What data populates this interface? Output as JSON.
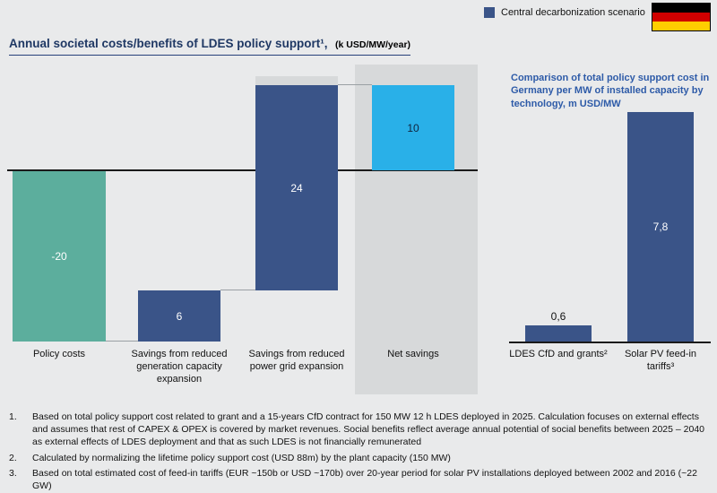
{
  "legend": {
    "label": "Central decarbonization scenario",
    "swatch_color": "#3a5488"
  },
  "flag": {
    "country": "Germany",
    "colors": [
      "#000000",
      "#d00000",
      "#ffce00"
    ]
  },
  "title": {
    "text": "Annual societal costs/benefits of LDES policy support¹,",
    "unit": "(k USD/MW/year)"
  },
  "chart_data": [
    {
      "type": "bar",
      "subtype": "waterfall",
      "title": "Annual societal costs/benefits of LDES policy support (k USD/MW/year)",
      "categories": [
        "Policy costs",
        "Savings from reduced generation capacity expansion",
        "Savings from reduced power grid expansion",
        "Net savings"
      ],
      "values": [
        -20,
        6,
        24,
        10
      ],
      "value_labels": [
        "-20",
        "6",
        "24",
        "10"
      ],
      "bar_colors": [
        "#5cae9d",
        "#3a5488",
        "#3a5488",
        "#29b0e8"
      ],
      "baseline": 0,
      "ylim": [
        -20,
        10
      ],
      "grid": false,
      "notes": "Net savings column highlighted with light gray background band"
    },
    {
      "type": "bar",
      "title": "Comparison of total policy support cost in Germany per MW of installed capacity by technology, m USD/MW",
      "categories": [
        "LDES CfD and grants²",
        "Solar PV feed-in tariffs³"
      ],
      "values": [
        0.6,
        7.8
      ],
      "value_labels": [
        "0,6",
        "7,8"
      ],
      "bar_color": "#3a5488",
      "ylim": [
        0,
        8
      ],
      "grid": false
    }
  ],
  "right_chart": {
    "title": "Comparison of total policy support cost in Germany per MW of installed capacity by technology, m USD/MW"
  },
  "footnotes": [
    {
      "num": "1.",
      "text": "Based on total policy support cost related to grant and a 15-years CfD contract for 150 MW 12 h LDES deployed in 2025. Calculation focuses on external effects and assumes that rest of CAPEX & OPEX is covered by market revenues. Social benefits reflect average annual potential of social benefits between 2025 – 2040 as external effects of LDES deployment and that as such LDES is not financially remunerated"
    },
    {
      "num": "2.",
      "text": "Calculated by normalizing the lifetime policy support cost (USD 88m) by the plant capacity (150 MW)"
    },
    {
      "num": "3.",
      "text": "Based on total estimated cost of feed-in tariffs (EUR ~150b or USD ~170b) over 20-year period for solar PV installations deployed between 2002 and 2016 (~22 GW)"
    }
  ]
}
